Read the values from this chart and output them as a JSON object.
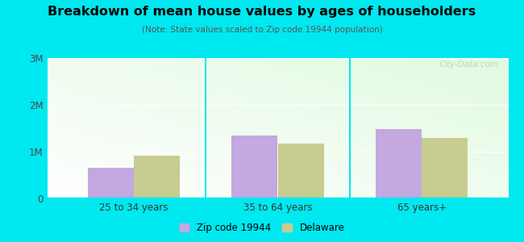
{
  "title": "Breakdown of mean house values by ages of householders",
  "subtitle": "(Note: State values scaled to Zip code 19944 population)",
  "categories": [
    "25 to 34 years",
    "35 to 64 years",
    "65 years+"
  ],
  "zip_values": [
    650000,
    1350000,
    1480000
  ],
  "state_values": [
    920000,
    1175000,
    1290000
  ],
  "zip_color": "#c4a8e0",
  "state_color": "#c8cc90",
  "ylim": [
    0,
    3000000
  ],
  "yticks": [
    0,
    1000000,
    2000000,
    3000000
  ],
  "ytick_labels": [
    "0",
    "1M",
    "2M",
    "3M"
  ],
  "legend_zip": "Zip code 19944",
  "legend_state": "Delaware",
  "bg_outer": "#00e8f0",
  "watermark": "City-Data.com",
  "bar_width": 0.32
}
